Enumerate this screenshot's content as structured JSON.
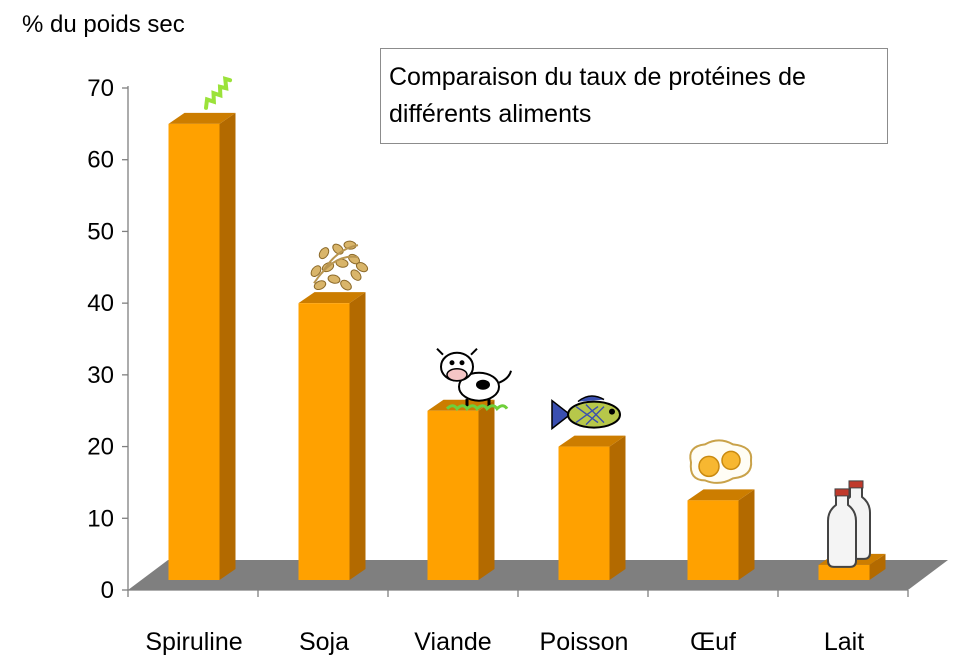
{
  "chart_data": {
    "type": "bar",
    "title": "Comparaison du taux de protéines de différents aliments",
    "ylabel": "% du poids sec",
    "xlabel": "",
    "categories": [
      "Spiruline",
      "Soja",
      "Viande",
      "Poisson",
      "Œuf",
      "Lait"
    ],
    "values": [
      65,
      40,
      25,
      20,
      12.5,
      3.5
    ],
    "ylim": [
      0,
      70
    ],
    "yticks": [
      "0",
      "10",
      "20",
      "30",
      "40",
      "50",
      "60",
      "70"
    ],
    "grid": false,
    "legend": "none",
    "bar_style": "3d",
    "colors": {
      "bar_front": "#FFA100",
      "bar_side": "#B36A00",
      "bar_top": "#CC7D00",
      "floor": "#7F7F7F"
    },
    "icons": [
      "spirulina-icon",
      "soybean-sprouts-icon",
      "cow-icon",
      "fish-icon",
      "fried-egg-icon",
      "milk-bottles-icon"
    ]
  }
}
